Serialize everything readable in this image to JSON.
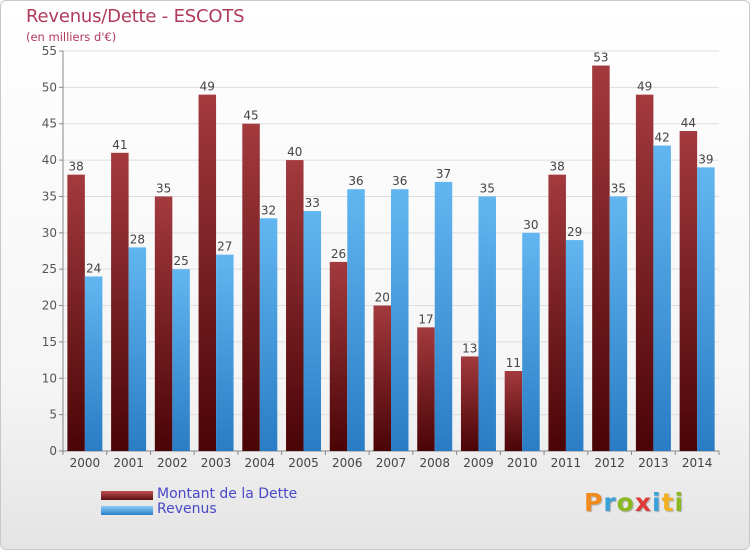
{
  "chart_data": {
    "type": "bar",
    "title": "Revenus/Dette - ESCOTS",
    "subtitle": "(en milliers d'€)",
    "categories": [
      "2000",
      "2001",
      "2002",
      "2003",
      "2004",
      "2005",
      "2006",
      "2007",
      "2008",
      "2009",
      "2010",
      "2011",
      "2012",
      "2013",
      "2014"
    ],
    "series": [
      {
        "name": "Montant de la Dette",
        "color": "#7a1e22",
        "values": [
          38,
          41,
          35,
          49,
          45,
          40,
          26,
          20,
          17,
          13,
          11,
          38,
          53,
          49,
          44
        ]
      },
      {
        "name": "Revenus",
        "color": "#4aa3e6",
        "values": [
          24,
          28,
          25,
          27,
          32,
          33,
          36,
          36,
          37,
          35,
          30,
          29,
          35,
          42,
          39
        ]
      }
    ],
    "ylim": [
      0,
      55
    ],
    "yticks": [
      0,
      5,
      10,
      15,
      20,
      25,
      30,
      35,
      40,
      45,
      50,
      55
    ],
    "grid": true,
    "legend_position": "bottom-left"
  },
  "logo_text": "Proxiti",
  "logo_colors": [
    "#f08a1c",
    "#3aa0d8",
    "#8ab820",
    "#e03a3a",
    "#3aa0d8",
    "#f0b020",
    "#8ab820"
  ]
}
